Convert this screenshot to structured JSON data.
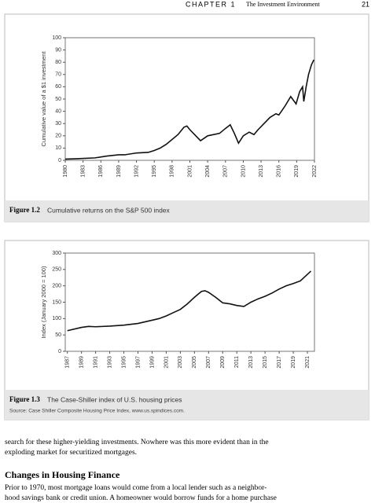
{
  "header": {
    "chapter": "CHAPTER 1",
    "title": "The Investment Environment",
    "page": "21"
  },
  "chart_data": [
    {
      "type": "line",
      "ylabel": "Cumulative value of a $1 investment",
      "x": [
        1980,
        1982,
        1985,
        1987,
        1989,
        1990,
        1992,
        1994,
        1995,
        1996,
        1997,
        1998,
        1999,
        2000,
        2000.5,
        2001,
        2002,
        2002.8,
        2004,
        2006,
        2007,
        2007.8,
        2008.5,
        2009.2,
        2010,
        2011,
        2011.8,
        2012.5,
        2013.5,
        2014.5,
        2015.5,
        2016,
        2017,
        2018,
        2018.9,
        2019.5,
        2020,
        2020.2,
        2020.6,
        2021,
        2021.5,
        2021.9
      ],
      "values": [
        1,
        1.3,
        2,
        3.5,
        4.5,
        4.5,
        6,
        6.5,
        8,
        10,
        13,
        17,
        21,
        27,
        28,
        25,
        20,
        16,
        20,
        22,
        26,
        29,
        22,
        14,
        20,
        23,
        21,
        25,
        30,
        35,
        38,
        37,
        44,
        52,
        46,
        56,
        60,
        48,
        60,
        70,
        78,
        82
      ],
      "color": "#111111",
      "xlim": [
        1980,
        2022
      ],
      "ylim": [
        0,
        100
      ],
      "xticks": [
        1980,
        1983,
        1986,
        1989,
        1992,
        1995,
        1998,
        2001,
        2004,
        2007,
        2010,
        2013,
        2016,
        2019,
        2022
      ],
      "yticks": [
        0,
        10,
        20,
        30,
        40,
        50,
        60,
        70,
        80,
        90,
        100
      ],
      "figure_label": "Figure 1.2",
      "caption": "Cumulative returns on the S&P 500 index"
    },
    {
      "type": "line",
      "ylabel": "Index (January 2000 = 100)",
      "x": [
        1987,
        1989,
        1990,
        1991,
        1993,
        1995,
        1997,
        1999,
        2000,
        2001,
        2002,
        2003,
        2004,
        2005,
        2006,
        2006.5,
        2007,
        2008,
        2009,
        2010,
        2011,
        2012,
        2013,
        2014,
        2015,
        2016,
        2017,
        2018,
        2019,
        2020,
        2021,
        2021.5
      ],
      "values": [
        63,
        73,
        76,
        75,
        77,
        80,
        85,
        95,
        100,
        108,
        118,
        128,
        145,
        165,
        183,
        185,
        180,
        165,
        148,
        145,
        140,
        137,
        150,
        160,
        168,
        178,
        190,
        200,
        207,
        215,
        235,
        245
      ],
      "color": "#111111",
      "xlim": [
        1986.7,
        2022
      ],
      "ylim": [
        0,
        300
      ],
      "xticks": [
        1987,
        1989,
        1991,
        1993,
        1995,
        1997,
        1999,
        2001,
        2003,
        2005,
        2007,
        2009,
        2011,
        2013,
        2015,
        2017,
        2019,
        2021
      ],
      "yticks": [
        0,
        50,
        100,
        150,
        200,
        250,
        300
      ],
      "figure_label": "Figure 1.3",
      "caption": "The Case-Shiller index of U.S. housing prices",
      "source": "Source: Case Shiller Composite Housing Price Index, www.us.spindices.com."
    }
  ],
  "body": {
    "lines1": [
      "search for these higher-yielding investments. Nowhere was this more evident than in the",
      "exploding market for securitized mortgages."
    ],
    "heading": "Changes in Housing Finance",
    "lines2": [
      "Prior to 1970, most mortgage loans would come from a local lender such as a neighbor-",
      "hood savings bank or credit union. A homeowner would borrow funds for a home purchase"
    ]
  }
}
